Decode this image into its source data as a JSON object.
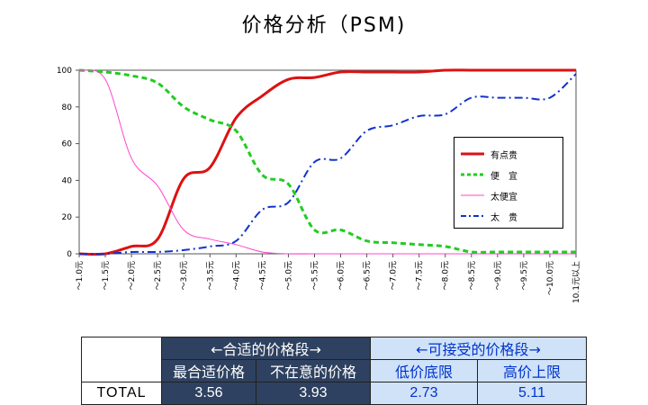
{
  "title": "价格分析（PSM)",
  "chart_data": {
    "type": "line",
    "categories": [
      "～1.0元",
      "～1.5元",
      "～2.0元",
      "～2.5元",
      "～3.0元",
      "～3.5元",
      "～4.0元",
      "～4.5元",
      "～5.0元",
      "～5.5元",
      "～6.0元",
      "～6.5元",
      "～7.0元",
      "～7.5元",
      "～8.0元",
      "～8.5元",
      "～9.0元",
      "～9.5元",
      "～10.0元",
      "10.1元以上"
    ],
    "ylim": [
      0,
      100
    ],
    "yticks": [
      0,
      20,
      40,
      60,
      80,
      100
    ],
    "legend_position": "right",
    "series": [
      {
        "name": "有点贵",
        "color": "#dd1111",
        "style": "solid",
        "values": [
          0,
          0,
          4,
          8,
          41,
          47,
          74,
          86,
          95,
          96,
          99,
          99,
          99,
          99,
          100,
          100,
          100,
          100,
          100,
          100
        ]
      },
      {
        "name": "便　宜",
        "color": "#22cc22",
        "style": "dash",
        "values": [
          100,
          99,
          97,
          93,
          80,
          73,
          67,
          43,
          38,
          13,
          13,
          7,
          6,
          5,
          4,
          1,
          1,
          1,
          1,
          1
        ]
      },
      {
        "name": "太便宜",
        "color": "#ff44cc",
        "style": "thin",
        "values": [
          100,
          95,
          52,
          37,
          13,
          8,
          5,
          1,
          0,
          0,
          0,
          0,
          0,
          0,
          0,
          0,
          0,
          0,
          0,
          0
        ]
      },
      {
        "name": "太　贵",
        "color": "#1133cc",
        "style": "dashdot",
        "values": [
          0,
          0,
          1,
          1,
          2,
          4,
          7,
          24,
          28,
          50,
          52,
          67,
          70,
          75,
          76,
          85,
          85,
          85,
          85,
          98
        ]
      }
    ]
  },
  "summary": {
    "group1": "←合适的价格段→",
    "group2": "←可接受的价格段→",
    "headers": [
      "最合适价格",
      "不在意的价格",
      "低价底限",
      "高价上限"
    ],
    "row_label": "TOTAL",
    "values": [
      "3.56",
      "3.93",
      "2.73",
      "5.11"
    ]
  }
}
